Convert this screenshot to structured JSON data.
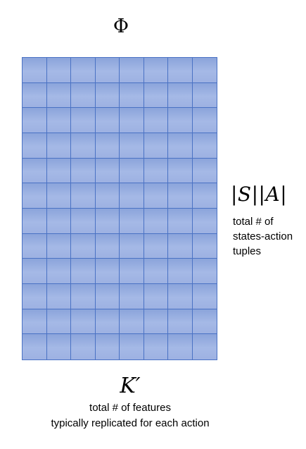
{
  "matrix": {
    "symbol": "Φ",
    "rows": 12,
    "cols": 8
  },
  "rows_annotation": {
    "math": "|S||A|",
    "lines": [
      "total # of",
      "states-action",
      "tuples"
    ]
  },
  "cols_annotation": {
    "math": "K′",
    "lines": [
      "total # of features",
      "typically replicated for each action"
    ]
  },
  "colors": {
    "cell_top": "#8ba4db",
    "cell_bottom": "#a5b9e6",
    "grid_line": "#4a72c4"
  }
}
